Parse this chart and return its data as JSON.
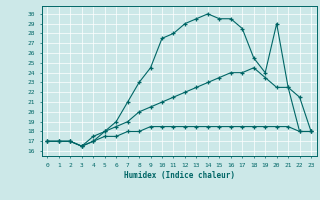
{
  "xlabel": "Humidex (Indice chaleur)",
  "ylabel": "",
  "background_color": "#cce8e8",
  "line_color": "#006666",
  "xlim": [
    -0.5,
    23.5
  ],
  "ylim": [
    15.5,
    30.8
  ],
  "yticks": [
    16,
    17,
    18,
    19,
    20,
    21,
    22,
    23,
    24,
    25,
    26,
    27,
    28,
    29,
    30
  ],
  "xticks": [
    0,
    1,
    2,
    3,
    4,
    5,
    6,
    7,
    8,
    9,
    10,
    11,
    12,
    13,
    14,
    15,
    16,
    17,
    18,
    19,
    20,
    21,
    22,
    23
  ],
  "line1_x": [
    0,
    1,
    2,
    3,
    4,
    5,
    6,
    7,
    8,
    9,
    10,
    11,
    12,
    13,
    14,
    15,
    16,
    17,
    18,
    19,
    20,
    21,
    22,
    23
  ],
  "line1_y": [
    17.0,
    17.0,
    17.0,
    16.5,
    17.0,
    18.0,
    19.0,
    21.0,
    23.0,
    24.5,
    27.5,
    28.0,
    29.0,
    29.5,
    30.0,
    29.5,
    29.5,
    28.5,
    25.5,
    24.0,
    29.0,
    22.5,
    18.0,
    18.0
  ],
  "line2_x": [
    0,
    1,
    2,
    3,
    4,
    5,
    6,
    7,
    8,
    9,
    10,
    11,
    12,
    13,
    14,
    15,
    16,
    17,
    18,
    19,
    20,
    21,
    22,
    23
  ],
  "line2_y": [
    17.0,
    17.0,
    17.0,
    16.5,
    17.5,
    18.0,
    18.5,
    19.0,
    20.0,
    20.5,
    21.0,
    21.5,
    22.0,
    22.5,
    23.0,
    23.5,
    24.0,
    24.0,
    24.5,
    23.5,
    22.5,
    22.5,
    21.5,
    18.0
  ],
  "line3_x": [
    0,
    1,
    2,
    3,
    4,
    5,
    6,
    7,
    8,
    9,
    10,
    11,
    12,
    13,
    14,
    15,
    16,
    17,
    18,
    19,
    20,
    21,
    22,
    23
  ],
  "line3_y": [
    17.0,
    17.0,
    17.0,
    16.5,
    17.0,
    17.5,
    17.5,
    18.0,
    18.0,
    18.5,
    18.5,
    18.5,
    18.5,
    18.5,
    18.5,
    18.5,
    18.5,
    18.5,
    18.5,
    18.5,
    18.5,
    18.5,
    18.0,
    18.0
  ]
}
